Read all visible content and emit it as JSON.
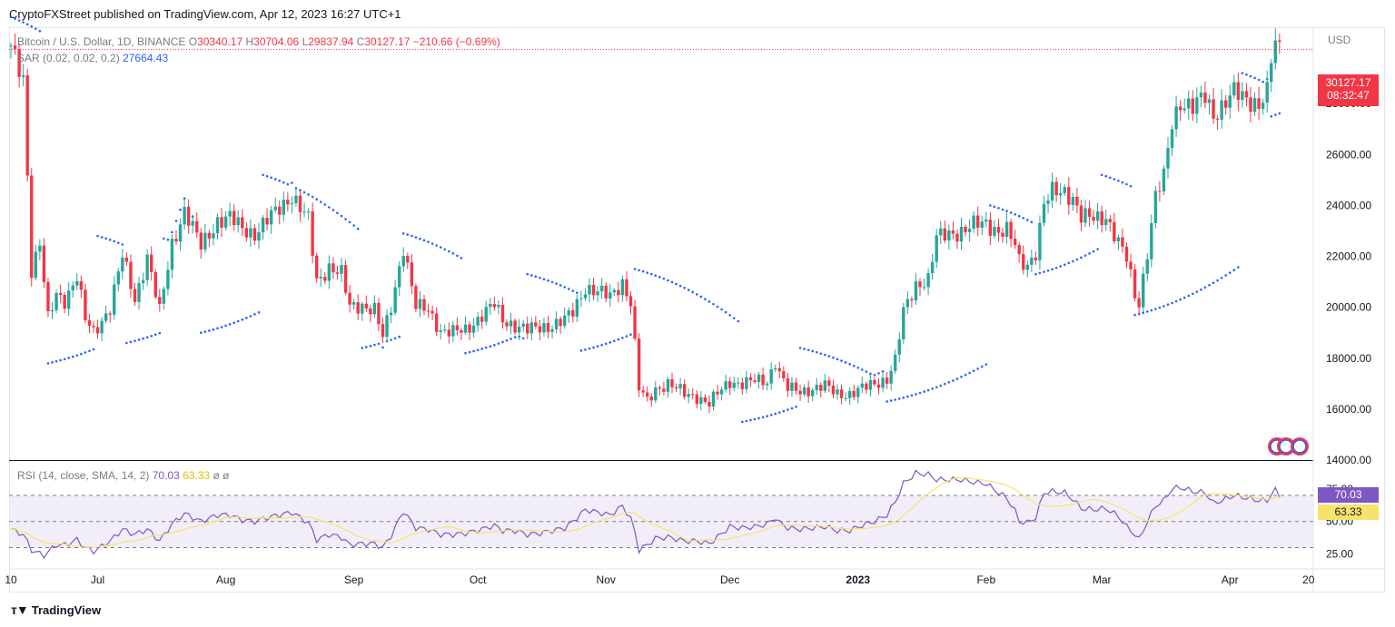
{
  "header": {
    "published_text": "CryptoFXStreet published on TradingView.com, Apr 12, 2023 16:27 UTC+1"
  },
  "legend": {
    "symbol": "Bitcoin / U.S. Dollar, 1D, BINANCE",
    "o_label": "O",
    "o_value": "30340.17",
    "h_label": "H",
    "h_value": "30704.06",
    "l_label": "L",
    "l_value": "29837.94",
    "c_label": "C",
    "c_value": "30127.17",
    "change": "−210.66 (−0.69%)",
    "sar_label": "SAR (0.02, 0.02, 0.2)",
    "sar_value": "27664.43",
    "rsi_label": "RSI (14, close, SMA, 14, 2)",
    "rsi_value": "70.03",
    "rsi_sma_value": "63.33",
    "rsi_extra": "ø  ø"
  },
  "price_axis": {
    "currency": "USD",
    "last_price": "30127.17",
    "countdown": "08:32:47"
  },
  "rsi_axis": {
    "rsi_tag": "70.03",
    "sma_tag": "63.33"
  },
  "footer": {
    "brand": "TradingView"
  },
  "colors": {
    "up": "#26a69a",
    "down": "#f23645",
    "sar": "#2962ff",
    "rsi": "#7e57c2",
    "rsi_sma": "#f7e36b",
    "band": "#ede7f6"
  },
  "chart_data": {
    "type": "candlestick",
    "price_ylim": [
      14000,
      31000
    ],
    "price_ticks": [
      "14000.00",
      "16000.00",
      "18000.00",
      "20000.00",
      "22000.00",
      "24000.00",
      "26000.00",
      "28000.00"
    ],
    "rsi_ylim": [
      15,
      95
    ],
    "rsi_ticks": [
      "25.00",
      "50.00",
      "75.00"
    ],
    "rsi_bands": [
      30,
      50,
      70
    ],
    "x_ticks": [
      {
        "label": "10",
        "i": 0
      },
      {
        "label": "Jul",
        "i": 21
      },
      {
        "label": "Aug",
        "i": 52
      },
      {
        "label": "Sep",
        "i": 83
      },
      {
        "label": "Oct",
        "i": 113
      },
      {
        "label": "Nov",
        "i": 144
      },
      {
        "label": "Dec",
        "i": 174
      },
      {
        "label": "2023",
        "i": 205
      },
      {
        "label": "Feb",
        "i": 236
      },
      {
        "label": "Mar",
        "i": 264
      },
      {
        "label": "Apr",
        "i": 295
      },
      {
        "label": "20",
        "i": 314
      }
    ],
    "anchors": [
      [
        0,
        30100
      ],
      [
        3,
        29000
      ],
      [
        5,
        21500
      ],
      [
        7,
        22500
      ],
      [
        9,
        19500
      ],
      [
        11,
        20500
      ],
      [
        13,
        20300
      ],
      [
        16,
        21200
      ],
      [
        18,
        19500
      ],
      [
        20,
        19000
      ],
      [
        24,
        20000
      ],
      [
        27,
        22000
      ],
      [
        30,
        20300
      ],
      [
        33,
        22000
      ],
      [
        36,
        19800
      ],
      [
        39,
        22500
      ],
      [
        42,
        23800
      ],
      [
        46,
        22400
      ],
      [
        50,
        23400
      ],
      [
        53,
        23500
      ],
      [
        56,
        23100
      ],
      [
        59,
        22900
      ],
      [
        62,
        23400
      ],
      [
        65,
        23900
      ],
      [
        68,
        24400
      ],
      [
        72,
        23400
      ],
      [
        74,
        21000
      ],
      [
        77,
        21600
      ],
      [
        80,
        21300
      ],
      [
        82,
        20000
      ],
      [
        85,
        20100
      ],
      [
        88,
        19900
      ],
      [
        90,
        18800
      ],
      [
        92,
        20000
      ],
      [
        95,
        22400
      ],
      [
        98,
        20000
      ],
      [
        101,
        19900
      ],
      [
        104,
        19100
      ],
      [
        107,
        19000
      ],
      [
        110,
        19100
      ],
      [
        114,
        19700
      ],
      [
        117,
        20100
      ],
      [
        119,
        19500
      ],
      [
        122,
        19300
      ],
      [
        125,
        19100
      ],
      [
        128,
        19200
      ],
      [
        131,
        19300
      ],
      [
        134,
        19500
      ],
      [
        136,
        19800
      ],
      [
        139,
        20800
      ],
      [
        142,
        20600
      ],
      [
        145,
        20400
      ],
      [
        148,
        21000
      ],
      [
        150,
        20200
      ],
      [
        151,
        18500
      ],
      [
        152,
        16800
      ],
      [
        154,
        16300
      ],
      [
        156,
        16800
      ],
      [
        159,
        17000
      ],
      [
        163,
        16600
      ],
      [
        166,
        16500
      ],
      [
        169,
        16200
      ],
      [
        171,
        16600
      ],
      [
        174,
        17100
      ],
      [
        177,
        17000
      ],
      [
        180,
        17100
      ],
      [
        183,
        17100
      ],
      [
        185,
        17900
      ],
      [
        186,
        17400
      ],
      [
        188,
        16800
      ],
      [
        191,
        16700
      ],
      [
        194,
        16800
      ],
      [
        197,
        16900
      ],
      [
        200,
        16600
      ],
      [
        203,
        16600
      ],
      [
        206,
        16800
      ],
      [
        209,
        17000
      ],
      [
        212,
        17200
      ],
      [
        214,
        17900
      ],
      [
        216,
        19800
      ],
      [
        219,
        20900
      ],
      [
        222,
        21100
      ],
      [
        224,
        22700
      ],
      [
        227,
        22900
      ],
      [
        230,
        23000
      ],
      [
        233,
        23200
      ],
      [
        236,
        23300
      ],
      [
        239,
        23000
      ],
      [
        241,
        23000
      ],
      [
        243,
        22400
      ],
      [
        244,
        21800
      ],
      [
        246,
        21700
      ],
      [
        248,
        22200
      ],
      [
        250,
        24000
      ],
      [
        252,
        24500
      ],
      [
        255,
        24600
      ],
      [
        257,
        24300
      ],
      [
        259,
        23500
      ],
      [
        262,
        23500
      ],
      [
        265,
        23600
      ],
      [
        268,
        22500
      ],
      [
        270,
        21900
      ],
      [
        272,
        20500
      ],
      [
        273,
        20200
      ],
      [
        275,
        22200
      ],
      [
        277,
        24300
      ],
      [
        279,
        25100
      ],
      [
        281,
        27300
      ],
      [
        283,
        28100
      ],
      [
        286,
        27800
      ],
      [
        289,
        28300
      ],
      [
        291,
        27600
      ],
      [
        293,
        27900
      ],
      [
        296,
        28400
      ],
      [
        299,
        28200
      ],
      [
        302,
        28000
      ],
      [
        304,
        28400
      ],
      [
        305,
        29700
      ],
      [
        306,
        30300
      ],
      [
        307,
        30127
      ]
    ],
    "sar_segments": [
      [
        0,
        8,
        31400,
        -1
      ],
      [
        9,
        21,
        17800,
        1
      ],
      [
        21,
        28,
        22800,
        -1
      ],
      [
        28,
        37,
        18600,
        1
      ],
      [
        37,
        46,
        22700,
        -1
      ],
      [
        46,
        61,
        19000,
        1
      ],
      [
        61,
        85,
        25200,
        -1
      ],
      [
        85,
        95,
        18400,
        1
      ],
      [
        95,
        110,
        22900,
        -1
      ],
      [
        110,
        125,
        18200,
        1
      ],
      [
        125,
        138,
        21300,
        -1
      ],
      [
        138,
        151,
        18300,
        1
      ],
      [
        151,
        177,
        21500,
        -1
      ],
      [
        177,
        191,
        15500,
        1
      ],
      [
        191,
        212,
        18400,
        -1
      ],
      [
        212,
        237,
        16300,
        1
      ],
      [
        237,
        248,
        24000,
        -1
      ],
      [
        248,
        264,
        21300,
        1
      ],
      [
        264,
        272,
        25200,
        -1
      ],
      [
        272,
        298,
        19700,
        1
      ],
      [
        298,
        305,
        29200,
        -1
      ],
      [
        305,
        308,
        27500,
        1
      ]
    ],
    "rsi_anchors": [
      [
        0,
        44
      ],
      [
        3,
        40
      ],
      [
        5,
        28
      ],
      [
        8,
        24
      ],
      [
        11,
        32
      ],
      [
        13,
        32
      ],
      [
        16,
        36
      ],
      [
        18,
        30
      ],
      [
        20,
        27
      ],
      [
        24,
        35
      ],
      [
        27,
        44
      ],
      [
        30,
        40
      ],
      [
        33,
        44
      ],
      [
        36,
        35
      ],
      [
        39,
        48
      ],
      [
        42,
        56
      ],
      [
        46,
        50
      ],
      [
        50,
        55
      ],
      [
        53,
        55
      ],
      [
        56,
        51
      ],
      [
        59,
        50
      ],
      [
        62,
        53
      ],
      [
        65,
        55
      ],
      [
        68,
        57
      ],
      [
        72,
        49
      ],
      [
        74,
        36
      ],
      [
        77,
        40
      ],
      [
        80,
        38
      ],
      [
        82,
        32
      ],
      [
        85,
        33
      ],
      [
        88,
        33
      ],
      [
        90,
        30
      ],
      [
        92,
        39
      ],
      [
        95,
        58
      ],
      [
        98,
        45
      ],
      [
        101,
        44
      ],
      [
        104,
        40
      ],
      [
        107,
        40
      ],
      [
        110,
        41
      ],
      [
        114,
        44
      ],
      [
        117,
        47
      ],
      [
        119,
        43
      ],
      [
        122,
        43
      ],
      [
        125,
        40
      ],
      [
        128,
        41
      ],
      [
        131,
        43
      ],
      [
        134,
        45
      ],
      [
        136,
        50
      ],
      [
        139,
        59
      ],
      [
        142,
        57
      ],
      [
        145,
        55
      ],
      [
        148,
        62
      ],
      [
        150,
        52
      ],
      [
        151,
        42
      ],
      [
        152,
        28
      ],
      [
        154,
        32
      ],
      [
        156,
        37
      ],
      [
        159,
        38
      ],
      [
        163,
        35
      ],
      [
        166,
        35
      ],
      [
        169,
        33
      ],
      [
        171,
        38
      ],
      [
        174,
        46
      ],
      [
        177,
        45
      ],
      [
        180,
        46
      ],
      [
        183,
        48
      ],
      [
        185,
        53
      ],
      [
        186,
        49
      ],
      [
        188,
        45
      ],
      [
        191,
        44
      ],
      [
        194,
        45
      ],
      [
        197,
        46
      ],
      [
        200,
        43
      ],
      [
        203,
        43
      ],
      [
        206,
        47
      ],
      [
        209,
        50
      ],
      [
        212,
        55
      ],
      [
        214,
        65
      ],
      [
        216,
        79
      ],
      [
        219,
        87
      ],
      [
        222,
        86
      ],
      [
        224,
        82
      ],
      [
        227,
        82
      ],
      [
        230,
        82
      ],
      [
        233,
        80
      ],
      [
        236,
        79
      ],
      [
        239,
        72
      ],
      [
        241,
        68
      ],
      [
        243,
        58
      ],
      [
        244,
        50
      ],
      [
        246,
        49
      ],
      [
        248,
        53
      ],
      [
        250,
        72
      ],
      [
        252,
        73
      ],
      [
        255,
        72
      ],
      [
        257,
        67
      ],
      [
        259,
        60
      ],
      [
        262,
        59
      ],
      [
        265,
        60
      ],
      [
        268,
        54
      ],
      [
        270,
        46
      ],
      [
        272,
        40
      ],
      [
        273,
        36
      ],
      [
        275,
        50
      ],
      [
        277,
        62
      ],
      [
        279,
        66
      ],
      [
        281,
        75
      ],
      [
        283,
        76
      ],
      [
        286,
        73
      ],
      [
        289,
        72
      ],
      [
        291,
        64
      ],
      [
        293,
        66
      ],
      [
        296,
        70
      ],
      [
        299,
        68
      ],
      [
        302,
        66
      ],
      [
        304,
        66
      ],
      [
        305,
        71
      ],
      [
        306,
        74
      ],
      [
        307,
        70
      ]
    ]
  }
}
